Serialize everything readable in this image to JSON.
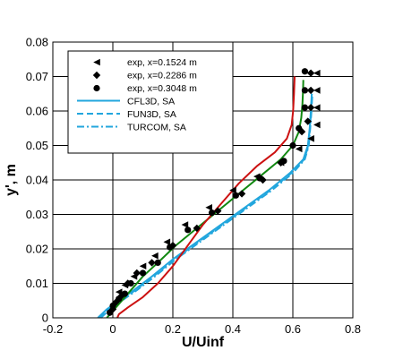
{
  "chart_data": {
    "type": "line",
    "xlabel": "U/Uinf",
    "ylabel": "y', m",
    "xlim": [
      -0.2,
      0.8
    ],
    "ylim": [
      0,
      0.08
    ],
    "xticks": [
      "-0.2",
      "0",
      "0.2",
      "0.4",
      "0.6",
      "0.8"
    ],
    "yticks": [
      "0",
      "0.01",
      "0.02",
      "0.03",
      "0.04",
      "0.05",
      "0.06",
      "0.07",
      "0.08"
    ],
    "grid": true,
    "legend_position": "top-left",
    "legend": [
      {
        "label": "exp, x=0.1524 m",
        "kind": "marker",
        "marker": "triangle-left"
      },
      {
        "label": "exp, x=0.2286 m",
        "kind": "marker",
        "marker": "diamond"
      },
      {
        "label": "exp, x=0.3048 m",
        "kind": "marker",
        "marker": "circle"
      },
      {
        "label": "CFL3D, SA",
        "kind": "line",
        "dash": "solid",
        "color": "#22a6dd"
      },
      {
        "label": "FUN3D, SA",
        "kind": "line",
        "dash": "dashed",
        "color": "#22a6dd"
      },
      {
        "label": "TURCOM, SA",
        "kind": "line",
        "dash": "dashdot",
        "color": "#22a6dd"
      }
    ],
    "markers": [
      {
        "name": "exp, x=0.1524 m",
        "marker": "triangle-left",
        "points": [
          [
            0.02,
            0.0075
          ],
          [
            0.04,
            0.0095
          ],
          [
            0.07,
            0.012
          ],
          [
            0.1,
            0.015
          ],
          [
            0.14,
            0.018
          ],
          [
            0.18,
            0.022
          ],
          [
            0.24,
            0.027
          ],
          [
            0.32,
            0.032
          ],
          [
            0.4,
            0.037
          ],
          [
            0.48,
            0.041
          ],
          [
            0.56,
            0.045
          ],
          [
            0.62,
            0.049
          ],
          [
            0.66,
            0.052
          ],
          [
            0.68,
            0.056
          ],
          [
            0.68,
            0.061
          ],
          [
            0.68,
            0.066
          ],
          [
            0.68,
            0.071
          ]
        ]
      },
      {
        "name": "exp, x=0.2286 m",
        "marker": "diamond",
        "points": [
          [
            0.0,
            0.0025
          ],
          [
            0.01,
            0.0045
          ],
          [
            0.03,
            0.0065
          ],
          [
            0.05,
            0.01
          ],
          [
            0.08,
            0.013
          ],
          [
            0.13,
            0.016
          ],
          [
            0.2,
            0.021
          ],
          [
            0.28,
            0.026
          ],
          [
            0.35,
            0.031
          ],
          [
            0.43,
            0.036
          ],
          [
            0.5,
            0.04
          ],
          [
            0.56,
            0.045
          ],
          [
            0.6,
            0.05
          ],
          [
            0.63,
            0.054
          ],
          [
            0.65,
            0.057
          ],
          [
            0.66,
            0.061
          ],
          [
            0.66,
            0.066
          ],
          [
            0.66,
            0.071
          ]
        ]
      },
      {
        "name": "exp, x=0.3048 m",
        "marker": "circle",
        "points": [
          [
            -0.01,
            0.0015
          ],
          [
            0.0,
            0.0035
          ],
          [
            0.02,
            0.0055
          ],
          [
            0.04,
            0.007
          ],
          [
            0.06,
            0.01
          ],
          [
            0.1,
            0.013
          ],
          [
            0.15,
            0.016
          ],
          [
            0.19,
            0.0205
          ],
          [
            0.25,
            0.0255
          ],
          [
            0.33,
            0.0305
          ],
          [
            0.41,
            0.0355
          ],
          [
            0.49,
            0.0405
          ],
          [
            0.57,
            0.0455
          ],
          [
            0.6,
            0.05
          ],
          [
            0.62,
            0.055
          ],
          [
            0.64,
            0.061
          ],
          [
            0.64,
            0.066
          ],
          [
            0.64,
            0.0715
          ]
        ]
      }
    ],
    "curves": [
      {
        "color": "#22a6dd",
        "dash": "solid",
        "points": [
          [
            -0.05,
            0.0
          ],
          [
            -0.02,
            0.0025
          ],
          [
            0.02,
            0.005
          ],
          [
            0.07,
            0.008
          ],
          [
            0.13,
            0.012
          ],
          [
            0.2,
            0.017
          ],
          [
            0.28,
            0.022
          ],
          [
            0.36,
            0.027
          ],
          [
            0.44,
            0.032
          ],
          [
            0.52,
            0.037
          ],
          [
            0.59,
            0.042
          ],
          [
            0.635,
            0.046
          ],
          [
            0.65,
            0.05
          ],
          [
            0.656,
            0.055
          ],
          [
            0.66,
            0.06
          ],
          [
            0.663,
            0.065
          ]
        ]
      },
      {
        "color": "#22a6dd",
        "dash": "dashed",
        "points": [
          [
            -0.045,
            0.0
          ],
          [
            -0.015,
            0.0025
          ],
          [
            0.025,
            0.005
          ],
          [
            0.075,
            0.008
          ],
          [
            0.135,
            0.012
          ],
          [
            0.205,
            0.017
          ],
          [
            0.285,
            0.022
          ],
          [
            0.365,
            0.027
          ],
          [
            0.445,
            0.032
          ],
          [
            0.525,
            0.037
          ],
          [
            0.595,
            0.042
          ],
          [
            0.638,
            0.046
          ],
          [
            0.652,
            0.05
          ],
          [
            0.657,
            0.055
          ],
          [
            0.661,
            0.06
          ],
          [
            0.664,
            0.065
          ]
        ]
      },
      {
        "color": "#22a6dd",
        "dash": "dashdot",
        "points": [
          [
            -0.04,
            0.0
          ],
          [
            -0.01,
            0.0025
          ],
          [
            0.03,
            0.005
          ],
          [
            0.08,
            0.008
          ],
          [
            0.14,
            0.012
          ],
          [
            0.21,
            0.017
          ],
          [
            0.29,
            0.022
          ],
          [
            0.37,
            0.027
          ],
          [
            0.45,
            0.032
          ],
          [
            0.53,
            0.037
          ],
          [
            0.6,
            0.042
          ],
          [
            0.64,
            0.046
          ],
          [
            0.653,
            0.05
          ],
          [
            0.658,
            0.055
          ],
          [
            0.662,
            0.06
          ],
          [
            0.665,
            0.065
          ]
        ]
      },
      {
        "color": "#118811",
        "dash": "solid",
        "points": [
          [
            -0.02,
            0.0
          ],
          [
            0.0,
            0.002
          ],
          [
            0.03,
            0.005
          ],
          [
            0.06,
            0.008
          ],
          [
            0.1,
            0.012
          ],
          [
            0.15,
            0.016
          ],
          [
            0.21,
            0.021
          ],
          [
            0.28,
            0.026
          ],
          [
            0.35,
            0.031
          ],
          [
            0.42,
            0.036
          ],
          [
            0.49,
            0.041
          ],
          [
            0.56,
            0.046
          ],
          [
            0.6,
            0.05
          ],
          [
            0.62,
            0.054
          ],
          [
            0.628,
            0.058
          ],
          [
            0.632,
            0.062
          ],
          [
            0.634,
            0.066
          ],
          [
            0.635,
            0.069
          ]
        ]
      },
      {
        "color": "#cc1111",
        "dash": "solid",
        "points": [
          [
            0.015,
            0.0
          ],
          [
            0.02,
            0.001
          ],
          [
            0.05,
            0.003
          ],
          [
            0.1,
            0.006
          ],
          [
            0.15,
            0.01
          ],
          [
            0.2,
            0.015
          ],
          [
            0.25,
            0.021
          ],
          [
            0.3,
            0.027
          ],
          [
            0.36,
            0.033
          ],
          [
            0.42,
            0.039
          ],
          [
            0.48,
            0.044
          ],
          [
            0.54,
            0.048
          ],
          [
            0.58,
            0.052
          ],
          [
            0.596,
            0.056
          ],
          [
            0.601,
            0.06
          ],
          [
            0.604,
            0.065
          ],
          [
            0.606,
            0.07
          ]
        ]
      }
    ]
  }
}
